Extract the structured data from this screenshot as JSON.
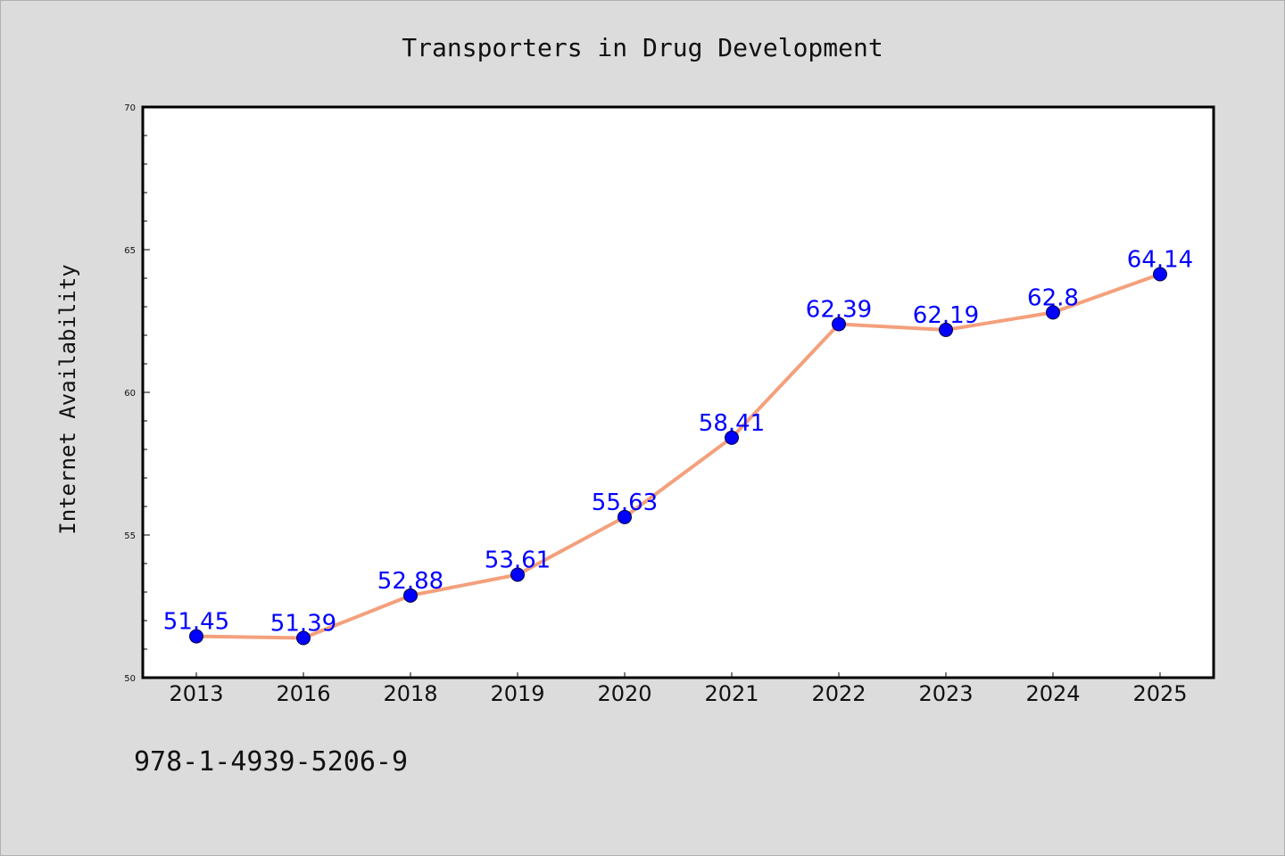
{
  "chart_data": {
    "type": "line",
    "title": "Transporters in Drug Development",
    "xlabel": "",
    "ylabel": "Internet Availability",
    "categories": [
      "2013",
      "2016",
      "2018",
      "2019",
      "2020",
      "2021",
      "2022",
      "2023",
      "2024",
      "2025"
    ],
    "series": [
      {
        "values": [
          51.45,
          51.39,
          52.88,
          53.61,
          55.63,
          58.41,
          62.39,
          62.19,
          62.8,
          64.14
        ],
        "data_labels": [
          "51.45",
          "51.39",
          "52.88",
          "53.61",
          "55.63",
          "58.41",
          "62.39",
          "62.19",
          "62.8",
          "64.14"
        ],
        "line_color": "#f4a07c",
        "marker_color": "#0000ff"
      }
    ],
    "ylim": [
      50,
      70
    ],
    "yticks": [
      "50",
      "55",
      "60",
      "65",
      "70"
    ],
    "grid": false,
    "legend": "none"
  },
  "footer_text": "978-1-4939-5206-9",
  "colors": {
    "background": "#dcdcdc",
    "plot_background": "#ffffff",
    "line": "#f4a07c",
    "marker": "#0000ff",
    "data_label": "#0000ff"
  }
}
